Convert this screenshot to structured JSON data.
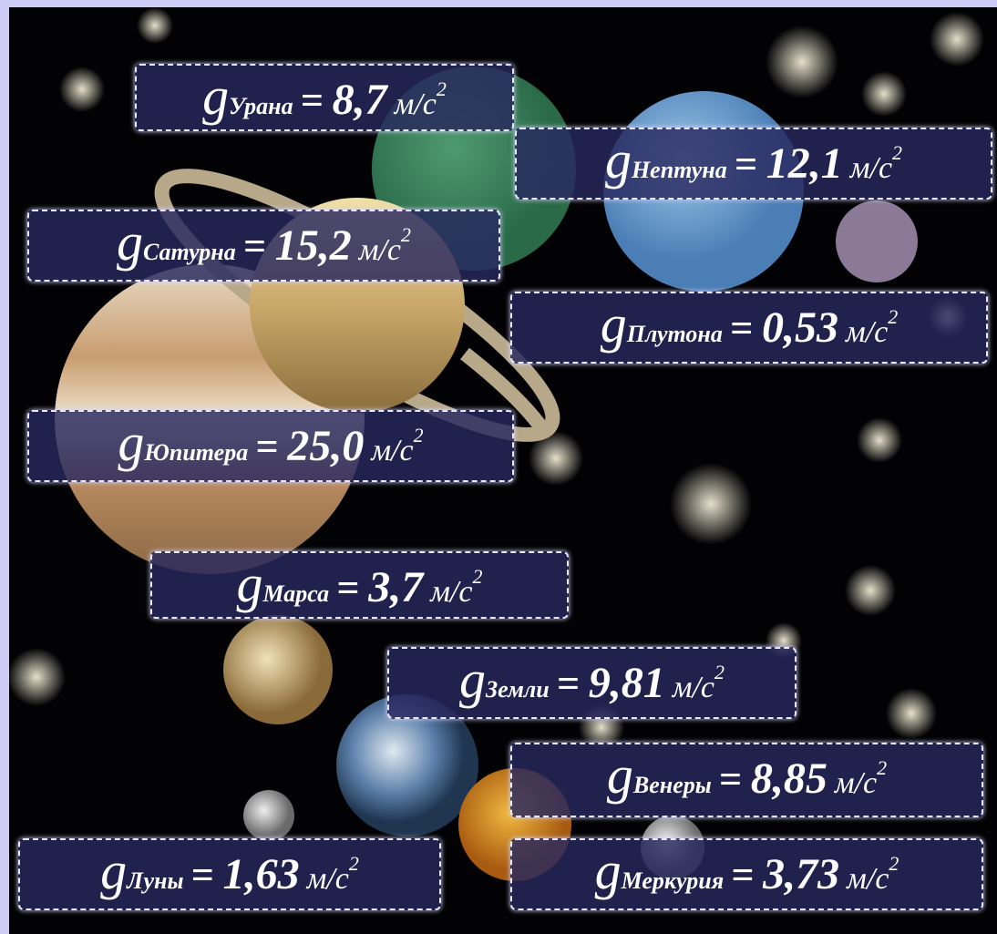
{
  "symbol": "g",
  "equals": "=",
  "unit": "м/с",
  "power": "2",
  "labels": [
    {
      "name": "Урана",
      "value": "8,7"
    },
    {
      "name": "Нептуна",
      "value": "12,1"
    },
    {
      "name": "Сатурна",
      "value": "15,2"
    },
    {
      "name": "Плутона",
      "value": "0,53"
    },
    {
      "name": "Юпитера",
      "value": "25,0"
    },
    {
      "name": "Марса",
      "value": "3,7"
    },
    {
      "name": "Земли",
      "value": "9,81"
    },
    {
      "name": "Венеры",
      "value": "8,85"
    },
    {
      "name": "Луны",
      "value": "1,63"
    },
    {
      "name": "Меркурия",
      "value": "3,73"
    }
  ]
}
